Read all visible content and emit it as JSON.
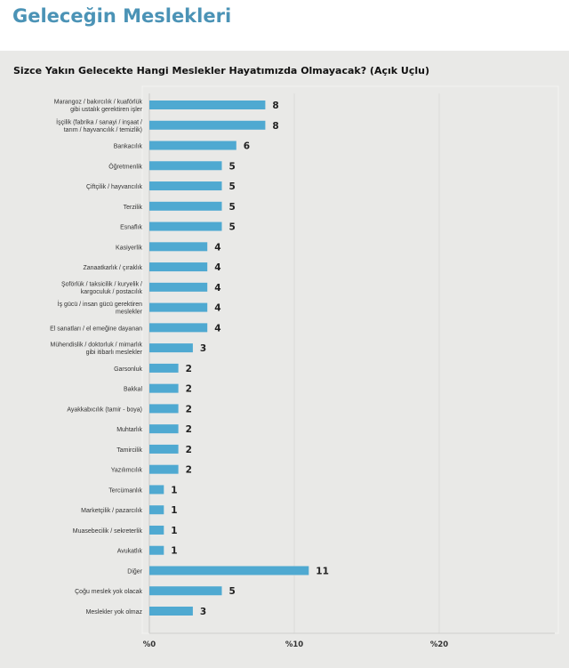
{
  "header": {
    "title": "Geleceğin Meslekleri"
  },
  "chart_data": {
    "type": "bar",
    "orientation": "horizontal",
    "title": "Sizce Yakın Gelecekte Hangi Meslekler Hayatımızda Olmayacak? (Açık Uçlu)",
    "xlabel": "",
    "ylabel": "",
    "xlim": [
      0,
      20
    ],
    "xticks": [
      "%0",
      "%10",
      "%20"
    ],
    "bar_color": "#4fa9d1",
    "categories": [
      [
        "Marangoz / bakırcılık / kuaförlük",
        "gibi ustalık gerektiren işler"
      ],
      [
        "İşçilik (fabrika / sanayi / inşaat /",
        "tarım / hayvancılık / temizlik)"
      ],
      [
        "Bankacılık"
      ],
      [
        "Öğretmenlik"
      ],
      [
        "Çiftçilik / hayvancılık"
      ],
      [
        "Terzilik"
      ],
      [
        "Esnaflık"
      ],
      [
        "Kasiyerlik"
      ],
      [
        "Zanaatkarlık / çıraklık"
      ],
      [
        "Şoförlük / taksicilik / kuryelik /",
        "kargoculuk / postacılık"
      ],
      [
        "İş gücü / insan gücü gerektiren",
        "meslekler"
      ],
      [
        "El sanatları / el emeğine dayanan"
      ],
      [
        "Mühendislik / doktorluk / mimarlık",
        "gibi itibarlı meslekler"
      ],
      [
        "Garsonluk"
      ],
      [
        "Bakkal"
      ],
      [
        "Ayakkabıcılık (tamir - boya)"
      ],
      [
        "Muhtarlık"
      ],
      [
        "Tamircilik"
      ],
      [
        "Yazılımcılık"
      ],
      [
        "Tercümanlık"
      ],
      [
        "Marketçilik / pazarcılık"
      ],
      [
        "Muasebecilik / sekreterlik"
      ],
      [
        "Avukatlık"
      ],
      [
        "Diğer"
      ],
      [
        "Çoğu meslek yok olacak"
      ],
      [
        "Meslekler yok olmaz"
      ]
    ],
    "values": [
      8,
      8,
      6,
      5,
      5,
      5,
      5,
      4,
      4,
      4,
      4,
      4,
      3,
      2,
      2,
      2,
      2,
      2,
      2,
      1,
      1,
      1,
      1,
      11,
      5,
      3
    ]
  }
}
